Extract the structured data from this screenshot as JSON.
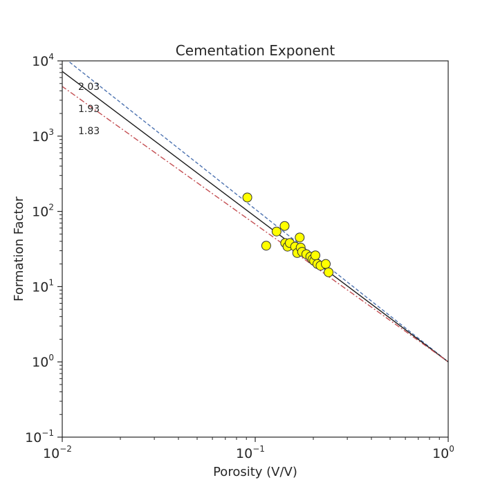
{
  "chart_data": {
    "type": "scatter",
    "title": "Cementation Exponent",
    "xlabel": "Porosity (V/V)",
    "ylabel": "Formation Factor",
    "xscale": "log",
    "yscale": "log",
    "xlim": [
      0.01,
      1
    ],
    "ylim": [
      0.1,
      10000
    ],
    "grid": false,
    "x_ticks": [
      {
        "value": 0.01,
        "base": "10",
        "exp": "−2"
      },
      {
        "value": 0.1,
        "base": "10",
        "exp": "−1"
      },
      {
        "value": 1,
        "base": "10",
        "exp": "0"
      }
    ],
    "y_ticks": [
      {
        "value": 0.1,
        "base": "10",
        "exp": "−1"
      },
      {
        "value": 1,
        "base": "10",
        "exp": "0"
      },
      {
        "value": 10,
        "base": "10",
        "exp": "1"
      },
      {
        "value": 100,
        "base": "10",
        "exp": "2"
      },
      {
        "value": 1000,
        "base": "10",
        "exp": "3"
      },
      {
        "value": 10000,
        "base": "10",
        "exp": "4"
      }
    ],
    "lines": [
      {
        "label": "2.03",
        "exponent": 2.03,
        "color": "#4c72b0",
        "style": "dashed"
      },
      {
        "label": "1.93",
        "exponent": 1.93,
        "color": "#1a1a1a",
        "style": "solid"
      },
      {
        "label": "1.83",
        "exponent": 1.83,
        "color": "#c44e52",
        "style": "dashdot"
      }
    ],
    "points": {
      "color": "#ffff00",
      "edge_color": "#333333",
      "values": [
        {
          "x": 0.091,
          "y": 153
        },
        {
          "x": 0.114,
          "y": 35
        },
        {
          "x": 0.129,
          "y": 54
        },
        {
          "x": 0.142,
          "y": 64
        },
        {
          "x": 0.143,
          "y": 38
        },
        {
          "x": 0.147,
          "y": 34
        },
        {
          "x": 0.151,
          "y": 38
        },
        {
          "x": 0.161,
          "y": 34
        },
        {
          "x": 0.165,
          "y": 28
        },
        {
          "x": 0.17,
          "y": 45
        },
        {
          "x": 0.172,
          "y": 33
        },
        {
          "x": 0.175,
          "y": 29
        },
        {
          "x": 0.184,
          "y": 27
        },
        {
          "x": 0.193,
          "y": 25
        },
        {
          "x": 0.198,
          "y": 23
        },
        {
          "x": 0.202,
          "y": 22
        },
        {
          "x": 0.205,
          "y": 26
        },
        {
          "x": 0.21,
          "y": 20
        },
        {
          "x": 0.218,
          "y": 19
        },
        {
          "x": 0.232,
          "y": 20
        },
        {
          "x": 0.24,
          "y": 15.5
        }
      ]
    }
  }
}
